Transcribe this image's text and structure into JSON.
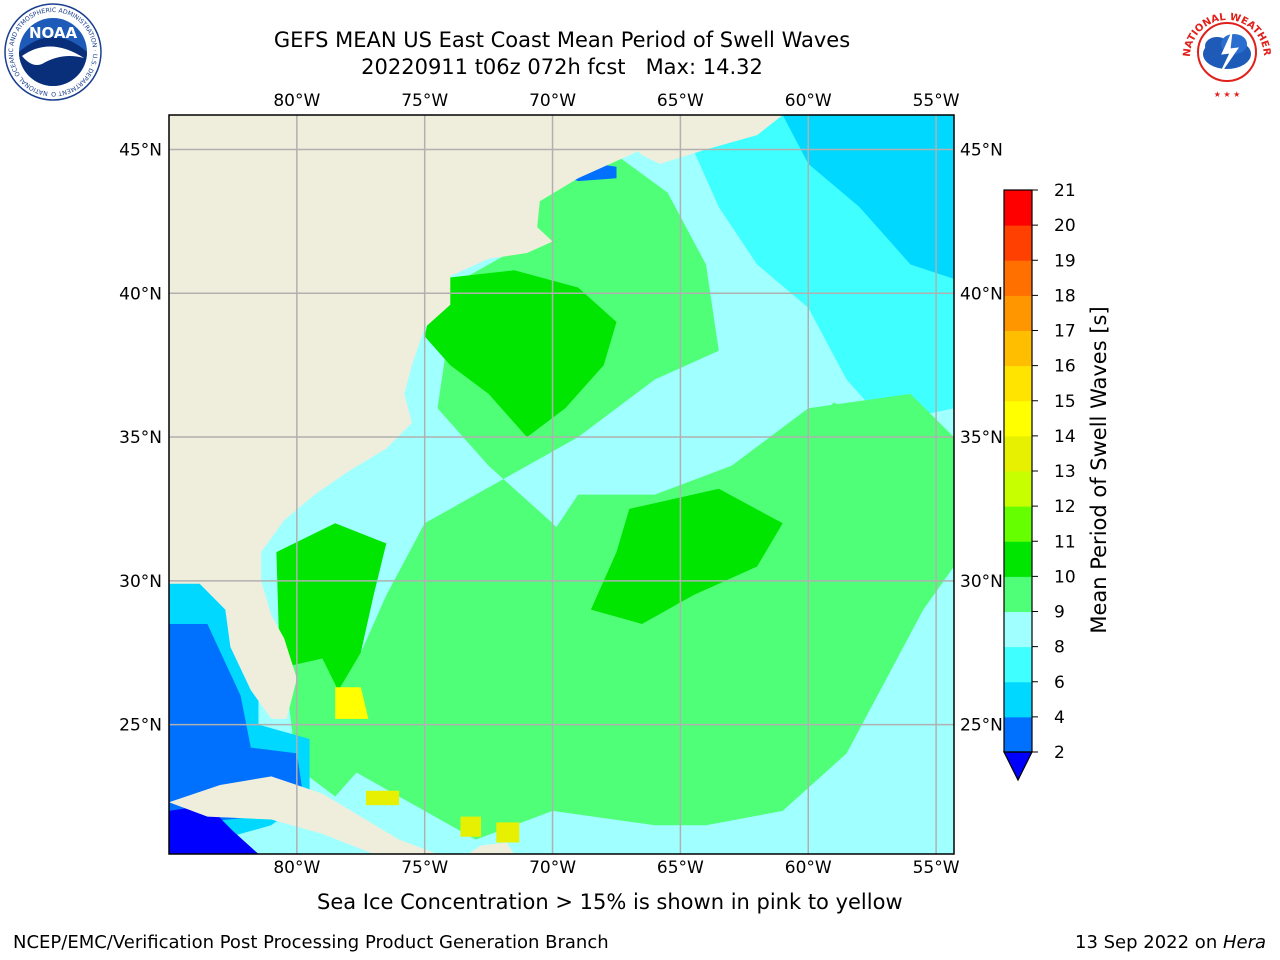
{
  "header": {
    "title_line1": "GEFS MEAN US East Coast Mean Period of Swell Waves",
    "title_line2": "20220911 t06z 072h fcst   Max: 14.32"
  },
  "logos": {
    "left": {
      "name": "noaa-logo",
      "text": "NOAA",
      "ring_text": "NATIONAL OCEANIC AND ATMOSPHERIC ADMINISTRATION · U.S. DEPARTMENT OF COMMERCE"
    },
    "right": {
      "name": "nws-logo",
      "ring_text": "NATIONAL WEATHER SERVICE"
    }
  },
  "map": {
    "lon_labels": [
      "80°W",
      "75°W",
      "70°W",
      "65°W",
      "60°W",
      "55°W"
    ],
    "lat_labels": [
      "45°N",
      "40°N",
      "35°N",
      "30°N",
      "25°N"
    ],
    "lon_range": [
      -85,
      -54.3
    ],
    "lat_range": [
      20.5,
      46.2
    ],
    "colors": {
      "land": "#efeedc",
      "ocean_lowest": "#0000ff",
      "gridline": "#b0b0b0"
    }
  },
  "colorbar": {
    "label": "Mean Period of Swell Waves [s]",
    "ticks": [
      "2",
      "4",
      "6",
      "8",
      "9",
      "10",
      "11",
      "12",
      "13",
      "14",
      "15",
      "16",
      "17",
      "18",
      "19",
      "20",
      "21"
    ],
    "colors": [
      "#0070ff",
      "#00d8ff",
      "#40ffff",
      "#a0ffff",
      "#50ff78",
      "#00e600",
      "#66ff00",
      "#c8ff00",
      "#e6f000",
      "#ffff00",
      "#ffe400",
      "#ffbe00",
      "#ff9600",
      "#ff7000",
      "#ff4000",
      "#ff0000"
    ],
    "under_color": "#0000ff"
  },
  "caption": "Sea Ice Concentration > 15% is shown in pink to yellow",
  "footer": {
    "left": "NCEP/EMC/Verification Post Processing Product Generation Branch",
    "right_prefix": "13 Sep 2022 on ",
    "right_machine": "Hera"
  }
}
